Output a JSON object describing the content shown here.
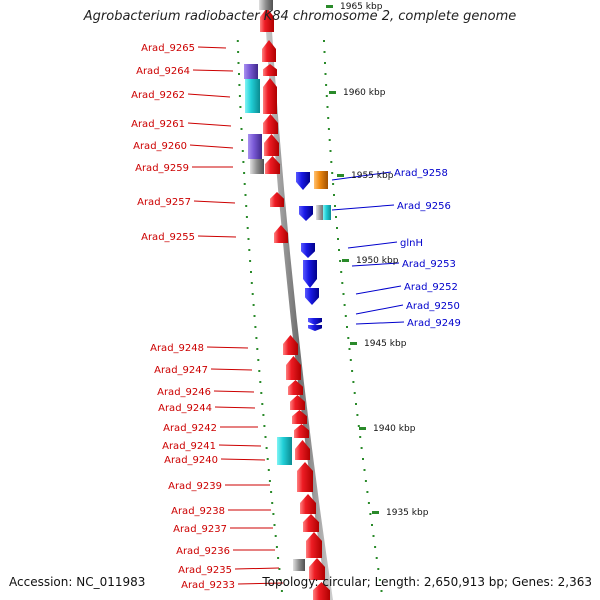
{
  "header": {
    "title": "Agrobacterium radiobacter K84 chromosome 2, complete genome"
  },
  "footer": {
    "accession": "Accession: NC_011983",
    "summary": "Topology: circular; Length: 2,650,913 bp; Genes: 2,363"
  },
  "colors": {
    "forward_gene": "#ee1c24",
    "reverse_gene": "#1a1ae6",
    "cyan_feature": "#22d0d8",
    "purple_feature": "#7a5ad6",
    "orange_feature": "#f08a10",
    "gray_feature": "#8c8c8c",
    "forward_label": "#cc0000",
    "reverse_label": "#0000cc",
    "backbone": "#8a8a8a",
    "tick": "#2a8a2a"
  },
  "scale_ticks": [
    "1965 kbp",
    "1960 kbp",
    "1955 kbp",
    "1950 kbp",
    "1945 kbp",
    "1940 kbp",
    "1935 kbp"
  ],
  "forward_labels": [
    "Arad_9265",
    "Arad_9264",
    "Arad_9262",
    "Arad_9261",
    "Arad_9260",
    "Arad_9259",
    "Arad_9257",
    "Arad_9255",
    "Arad_9248",
    "Arad_9247",
    "Arad_9246",
    "Arad_9244",
    "Arad_9242",
    "Arad_9241",
    "Arad_9240",
    "Arad_9239",
    "Arad_9238",
    "Arad_9237",
    "Arad_9236",
    "Arad_9235",
    "Arad_9233"
  ],
  "reverse_labels": [
    "Arad_9258",
    "Arad_9256",
    "glnH",
    "Arad_9253",
    "Arad_9252",
    "Arad_9250",
    "Arad_9249"
  ]
}
